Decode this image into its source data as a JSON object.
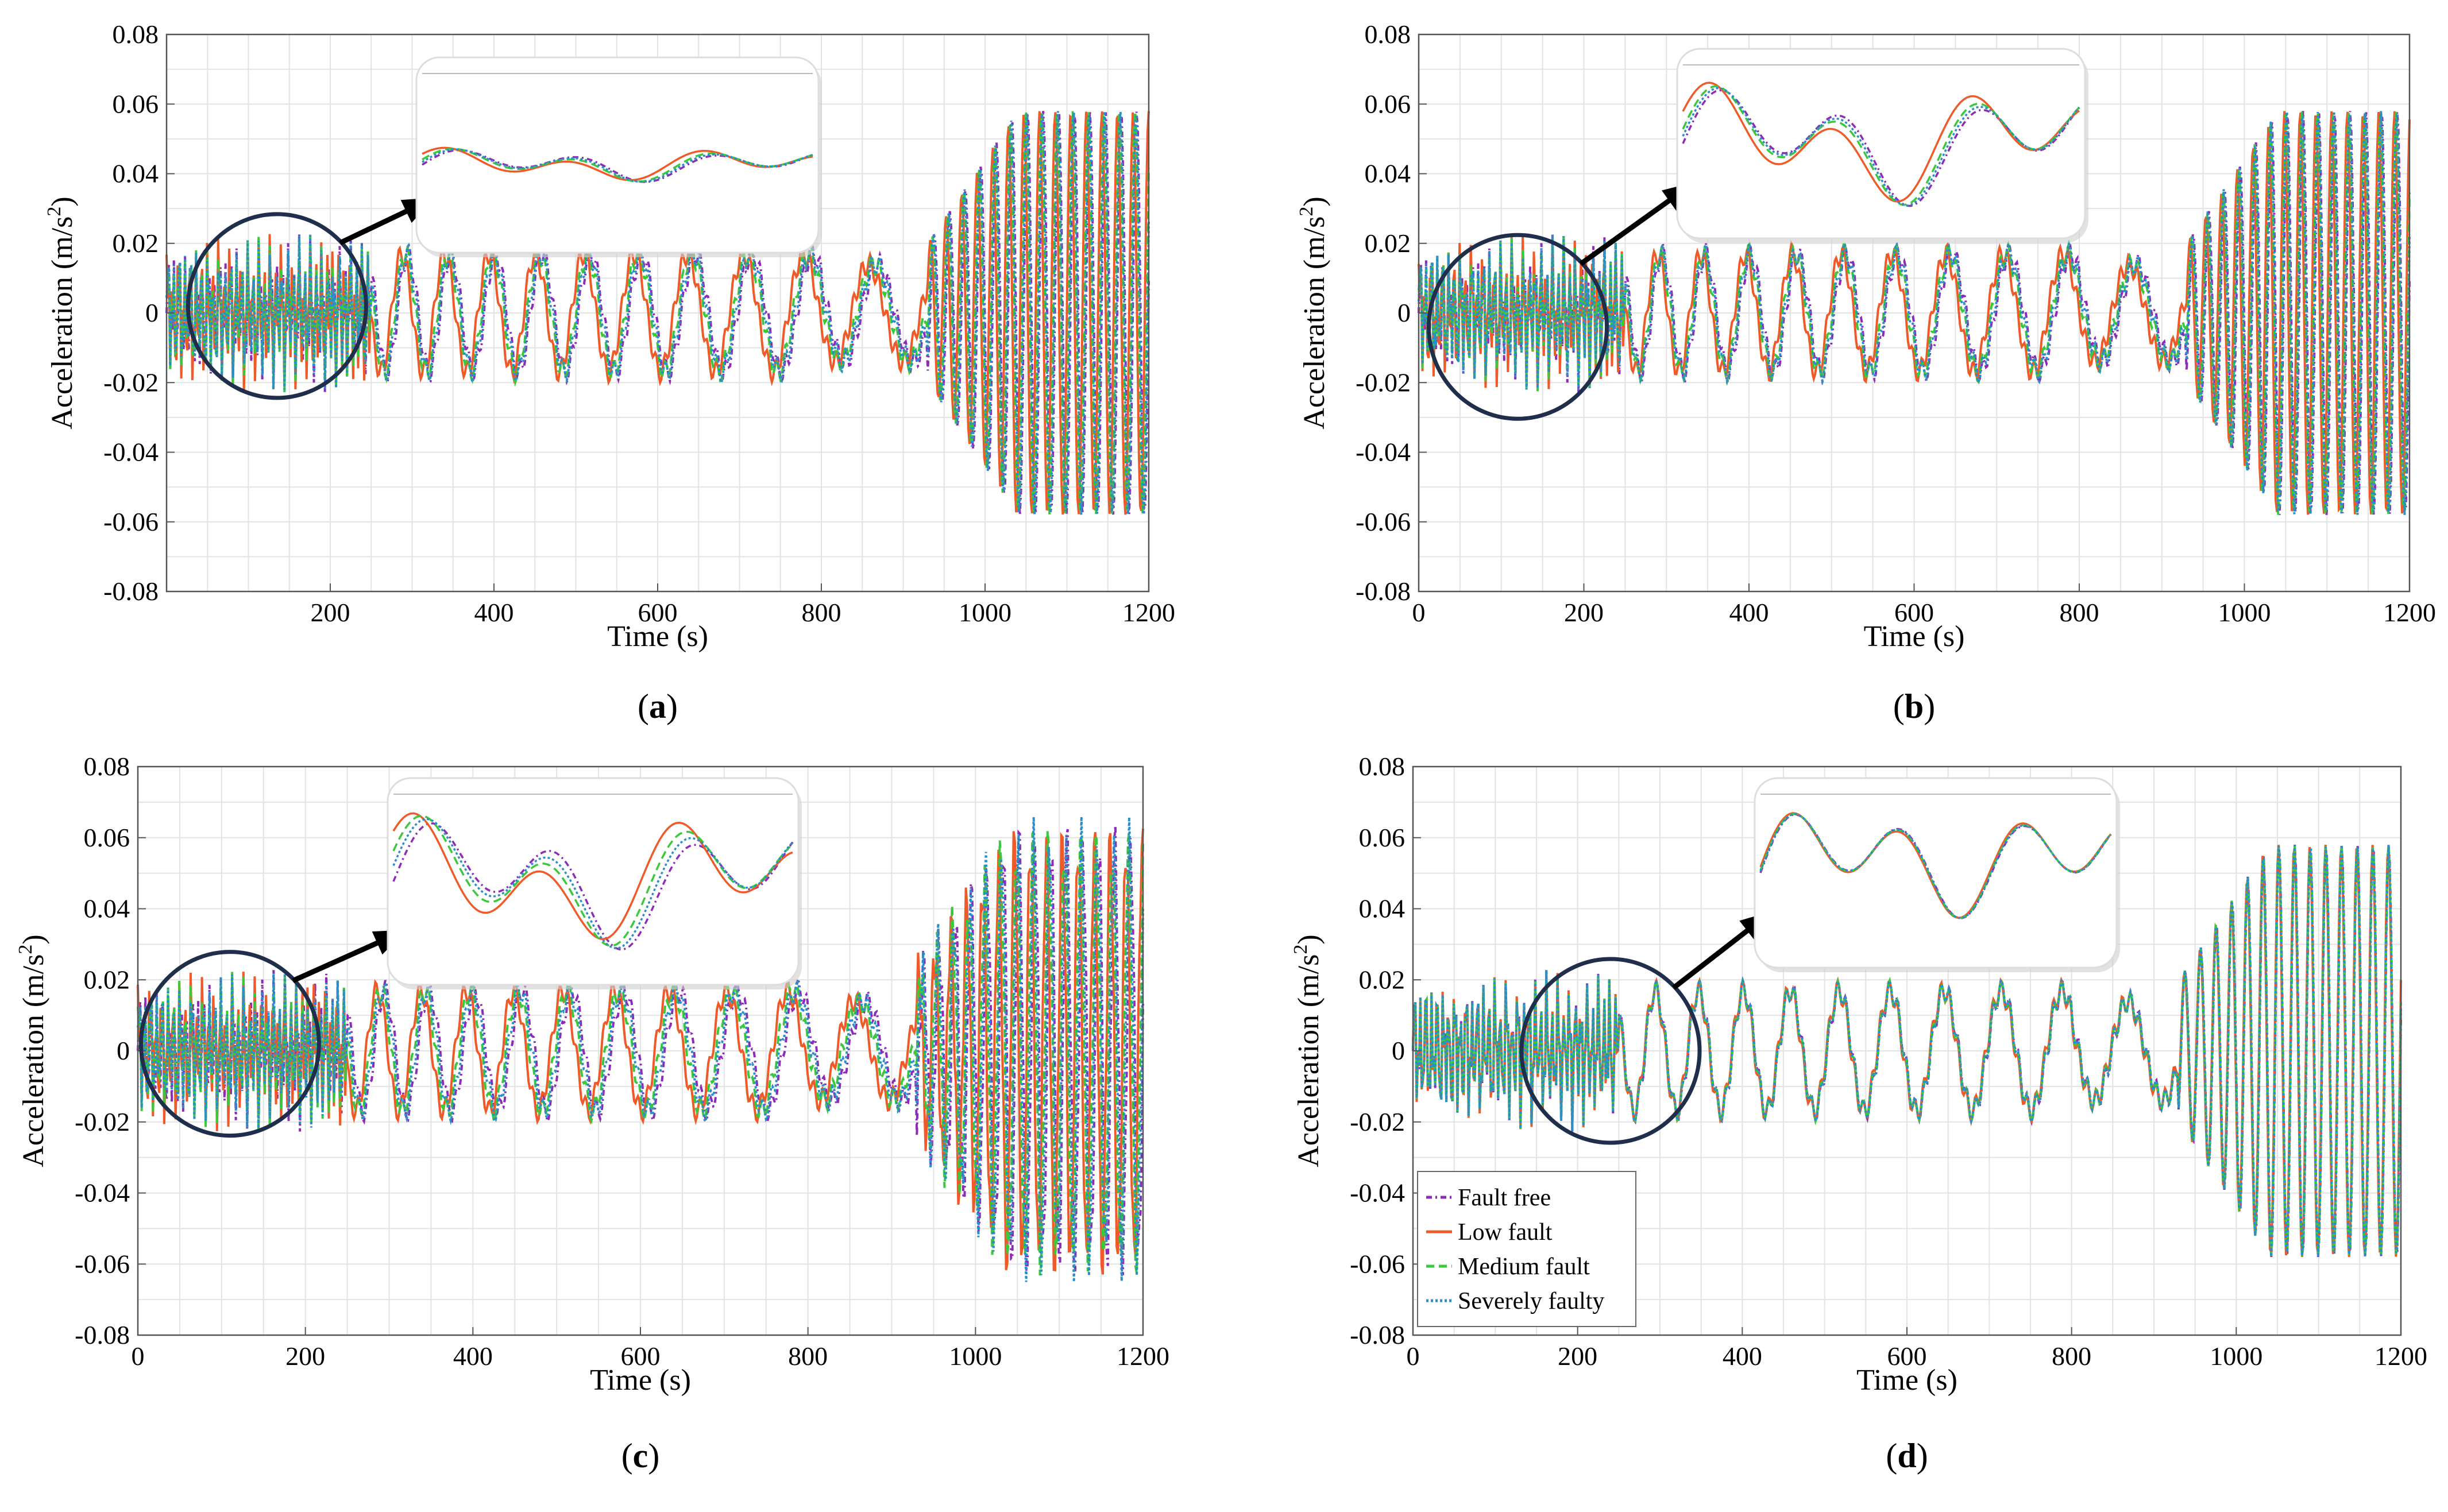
{
  "figure": {
    "description_labels": [
      "(a)",
      "(b)",
      "(c)",
      "(d)"
    ]
  },
  "colors": {
    "fault_free": "#8e2ab8",
    "low_fault": "#ef5a28",
    "medium_fault": "#3cc83c",
    "severely_faulty": "#2a8ec8",
    "circle": "#1f2e4a",
    "grid": "#e3e3e3"
  },
  "chart_data": [
    {
      "id": "a",
      "type": "line",
      "panel_label": "a",
      "xlabel": "Time (s)",
      "ylabel": "Acceleration (m/s",
      "ylabel_sup": "2",
      "ylabel_tail": ")",
      "xlim": [
        0,
        1200
      ],
      "ylim": [
        -0.08,
        0.08
      ],
      "xticks": [
        "200",
        "400",
        "600",
        "800",
        "1000",
        "1200"
      ],
      "xtick_values": [
        200,
        400,
        600,
        800,
        1000,
        1200
      ],
      "yticks": [
        "0.08",
        "0.06",
        "0.04",
        "0.02",
        "0",
        "-0.02",
        "-0.04",
        "-0.06",
        "-0.08"
      ],
      "ytick_values": [
        0.08,
        0.06,
        0.04,
        0.02,
        0,
        -0.02,
        -0.04,
        -0.06,
        -0.08
      ],
      "zoom_circle_center": [
        135,
        0.002
      ],
      "series": [
        {
          "name": "Fault free",
          "phase_shift": 0.0
        },
        {
          "name": "Low fault",
          "phase_shift": 0.9
        },
        {
          "name": "Medium fault",
          "phase_shift": 0.4
        },
        {
          "name": "Severely faulty",
          "phase_shift": 0.2
        }
      ]
    },
    {
      "id": "b",
      "type": "line",
      "panel_label": "b",
      "xlabel": "Time (s)",
      "ylabel": "Acceleration (m/s",
      "ylabel_sup": "2",
      "ylabel_tail": ")",
      "xlim": [
        0,
        1200
      ],
      "ylim": [
        -0.08,
        0.08
      ],
      "xticks": [
        "0",
        "200",
        "400",
        "600",
        "800",
        "1000",
        "1200"
      ],
      "xtick_values": [
        0,
        200,
        400,
        600,
        800,
        1000,
        1200
      ],
      "yticks": [
        "0.08",
        "0.06",
        "0.04",
        "0.02",
        "0",
        "-0.02",
        "-0.04",
        "-0.06",
        "-0.08"
      ],
      "ytick_values": [
        0.08,
        0.06,
        0.04,
        0.02,
        0,
        -0.02,
        -0.04,
        -0.06,
        -0.08
      ],
      "zoom_circle_center": [
        120,
        -0.004
      ],
      "series": [
        {
          "name": "Fault free",
          "phase_shift": 0.0
        },
        {
          "name": "Low fault",
          "phase_shift": 0.7
        },
        {
          "name": "Medium fault",
          "phase_shift": 0.3
        },
        {
          "name": "Severely faulty",
          "phase_shift": 0.15
        }
      ]
    },
    {
      "id": "c",
      "type": "line",
      "panel_label": "c",
      "xlabel": "Time (s)",
      "ylabel": "Acceleration (m/s",
      "ylabel_sup": "2",
      "ylabel_tail": ")",
      "xlim": [
        0,
        1200
      ],
      "ylim": [
        -0.08,
        0.08
      ],
      "xticks": [
        "0",
        "200",
        "400",
        "600",
        "800",
        "1000",
        "1200"
      ],
      "xtick_values": [
        0,
        200,
        400,
        600,
        800,
        1000,
        1200
      ],
      "yticks": [
        "0.08",
        "0.06",
        "0.04",
        "0.02",
        "0",
        "-0.02",
        "-0.04",
        "-0.06",
        "-0.08"
      ],
      "ytick_values": [
        0.08,
        0.06,
        0.04,
        0.02,
        0,
        -0.02,
        -0.04,
        -0.06,
        -0.08
      ],
      "zoom_circle_center": [
        110,
        0.002
      ],
      "series": [
        {
          "name": "Fault free",
          "phase_shift": 0.0
        },
        {
          "name": "Low fault",
          "phase_shift": 1.1
        },
        {
          "name": "Medium fault",
          "phase_shift": 0.6
        },
        {
          "name": "Severely faulty",
          "phase_shift": 0.3
        }
      ]
    },
    {
      "id": "d",
      "type": "line",
      "panel_label": "d",
      "xlabel": "Time (s)",
      "ylabel": "Acceleration (m/s",
      "ylabel_sup": "2",
      "ylabel_tail": ")",
      "xlim": [
        0,
        1200
      ],
      "ylim": [
        -0.08,
        0.08
      ],
      "xticks": [
        "0",
        "200",
        "400",
        "600",
        "800",
        "1000",
        "1200"
      ],
      "xtick_values": [
        0,
        200,
        400,
        600,
        800,
        1000,
        1200
      ],
      "yticks": [
        "0.08",
        "0.06",
        "0.04",
        "0.02",
        "0",
        "-0.02",
        "-0.04",
        "-0.06",
        "-0.08"
      ],
      "ytick_values": [
        0.08,
        0.06,
        0.04,
        0.02,
        0,
        -0.02,
        -0.04,
        -0.06,
        -0.08
      ],
      "zoom_circle_center": [
        240,
        0.0
      ],
      "legend": {
        "placement": "bottom-left",
        "entries": [
          "Fault free",
          "Low fault",
          "Medium fault",
          "Severely faulty"
        ]
      },
      "series": [
        {
          "name": "Fault free",
          "phase_shift": 0.0
        },
        {
          "name": "Low fault",
          "phase_shift": 0.12
        },
        {
          "name": "Medium fault",
          "phase_shift": 0.05
        },
        {
          "name": "Severely faulty",
          "phase_shift": 0.03
        }
      ]
    }
  ]
}
